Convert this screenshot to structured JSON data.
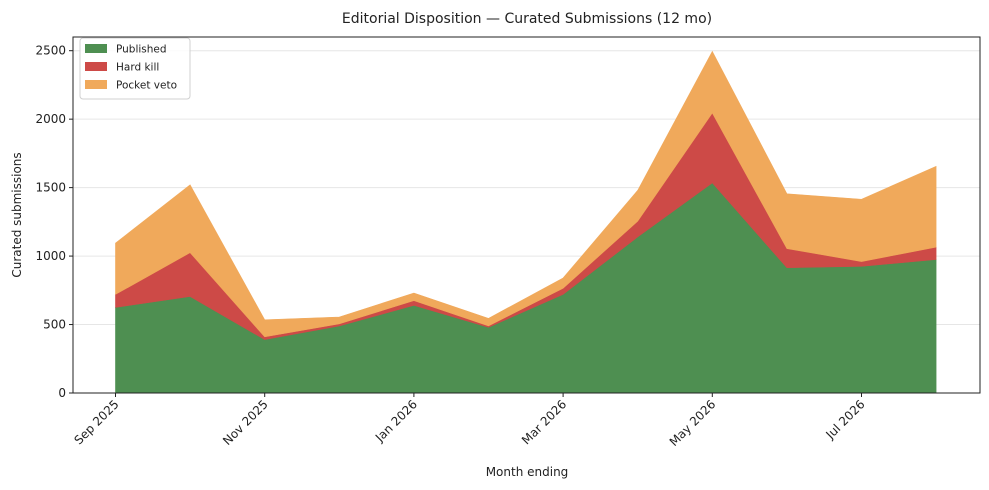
{
  "chart_data": {
    "type": "area",
    "stacked": true,
    "title": "Editorial Disposition — Curated Submissions (12 mo)",
    "xlabel": "Month ending",
    "ylabel": "Curated submissions",
    "x": [
      "2025-09",
      "2025-10",
      "2025-11",
      "2025-12",
      "2026-01",
      "2026-02",
      "2026-03",
      "2026-04",
      "2026-05",
      "2026-06",
      "2026-07",
      "2026-08"
    ],
    "x_tick_labels": [
      {
        "x": "2025-09",
        "label": "Sep 2025"
      },
      {
        "x": "2025-11",
        "label": "Nov 2025"
      },
      {
        "x": "2026-01",
        "label": "Jan 2026"
      },
      {
        "x": "2026-03",
        "label": "Mar 2026"
      },
      {
        "x": "2026-05",
        "label": "May 2026"
      },
      {
        "x": "2026-07",
        "label": "Jul 2026"
      }
    ],
    "ylim": [
      0,
      2600
    ],
    "yticks": [
      0,
      500,
      1000,
      1500,
      2000,
      2500
    ],
    "grid": "horizontal",
    "legend_position": "top-left",
    "series": [
      {
        "name": "Published",
        "color": "#4e8f51",
        "values": [
          625,
          705,
          390,
          490,
          640,
          480,
          720,
          1140,
          1535,
          915,
          925,
          975
        ]
      },
      {
        "name": "Hard kill",
        "color": "#cd4a47",
        "values": [
          95,
          320,
          20,
          15,
          35,
          10,
          45,
          115,
          510,
          140,
          35,
          90
        ]
      },
      {
        "name": "Pocket veto",
        "color": "#f0a95b",
        "values": [
          375,
          495,
          125,
          50,
          55,
          55,
          75,
          225,
          450,
          400,
          455,
          590
        ]
      }
    ]
  }
}
